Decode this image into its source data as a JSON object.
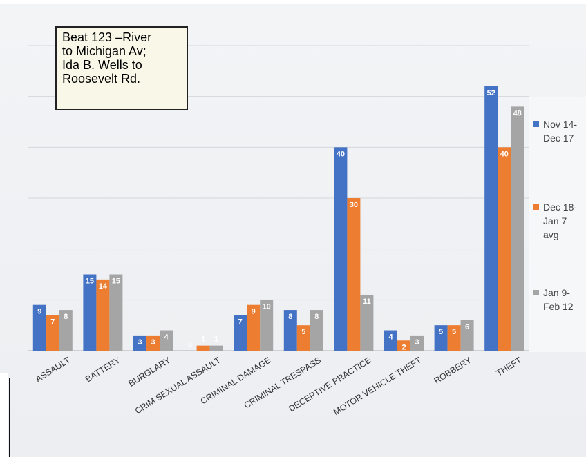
{
  "textbox": {
    "lines": [
      "Beat 123 –River",
      "to Michigan Av;",
      "Ida B. Wells to",
      "Roosevelt Rd."
    ]
  },
  "legend": [
    {
      "lines": [
        "Nov 14-",
        "Dec 17"
      ],
      "color": "#4472c4"
    },
    {
      "lines": [
        "Dec 18-",
        "Jan 7",
        "avg"
      ],
      "color": "#ed7d31"
    },
    {
      "lines": [
        "Jan 9-",
        "Feb 12"
      ],
      "color": "#a5a5a5"
    }
  ],
  "chart_data": {
    "type": "bar",
    "title": "",
    "xlabel": "",
    "ylabel": "",
    "ylim": [
      0,
      60
    ],
    "grid": true,
    "legend_position": "right",
    "categories": [
      "ASSAULT",
      "BATTERY",
      "BURGLARY",
      "CRIM SEXUAL ASSAULT",
      "CRIMINAL DAMAGE",
      "CRIMINAL TRESPASS",
      "DECEPTIVE PRACTICE",
      "MOTOR VEHICLE THEFT",
      "ROBBERY",
      "THEFT"
    ],
    "series": [
      {
        "name": "Nov 14- Dec 17",
        "color": "#4472c4",
        "values": [
          9,
          15,
          3,
          0,
          7,
          8,
          40,
          4,
          5,
          52
        ]
      },
      {
        "name": "Dec 18- Jan 7 avg",
        "color": "#ed7d31",
        "values": [
          7,
          14,
          3,
          1,
          9,
          5,
          30,
          2,
          5,
          40
        ]
      },
      {
        "name": "Jan 9- Feb 12",
        "color": "#a5a5a5",
        "values": [
          8,
          15,
          4,
          1,
          10,
          8,
          11,
          3,
          6,
          48
        ]
      }
    ]
  }
}
